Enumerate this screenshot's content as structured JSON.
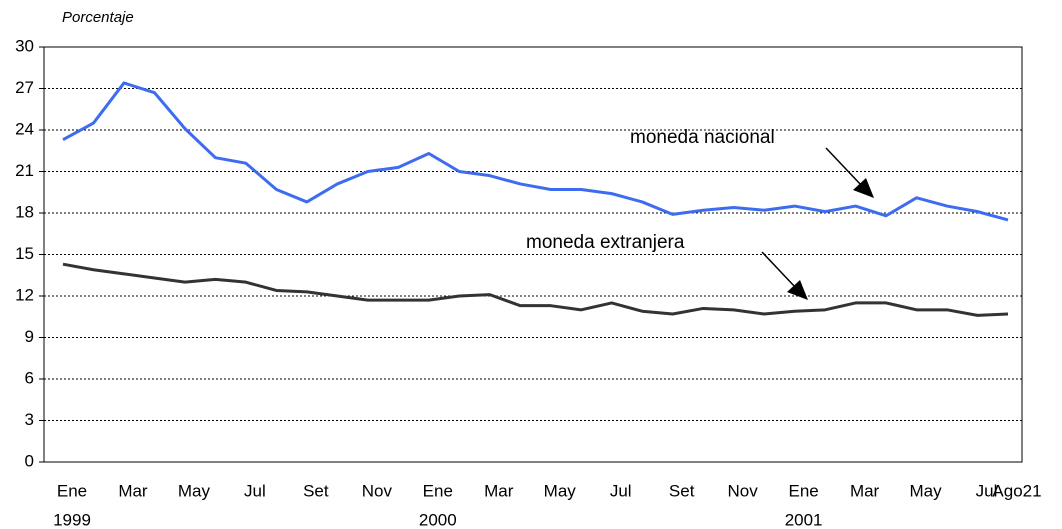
{
  "chart_data": {
    "type": "line",
    "y_label": "Porcentaje",
    "categories": [
      "Ene",
      null,
      "Mar",
      null,
      "May",
      null,
      "Jul",
      null,
      "Set",
      null,
      "Nov",
      null,
      "Ene",
      null,
      "Mar",
      null,
      "May",
      null,
      "Jul",
      null,
      "Set",
      null,
      "Nov",
      null,
      "Ene",
      null,
      "Mar",
      null,
      "May",
      null,
      "Jul",
      "Ago21"
    ],
    "years": [
      {
        "index": 0,
        "label": "1999"
      },
      {
        "index": 12,
        "label": "2000"
      },
      {
        "index": 24,
        "label": "2001"
      }
    ],
    "series": [
      {
        "name": "moneda nacional",
        "color": "#3d6cf0",
        "values": [
          23.3,
          24.5,
          27.4,
          26.7,
          24.1,
          22.0,
          21.6,
          19.7,
          18.8,
          20.1,
          21.0,
          21.3,
          22.3,
          21.0,
          20.7,
          20.1,
          19.7,
          19.7,
          19.4,
          18.8,
          17.9,
          18.2,
          18.4,
          18.2,
          18.5,
          18.1,
          18.5,
          17.8,
          19.1,
          18.5,
          18.1,
          17.5
        ]
      },
      {
        "name": "moneda extranjera",
        "color": "#333333",
        "values": [
          14.3,
          13.9,
          13.6,
          13.3,
          13.0,
          13.2,
          13.0,
          12.4,
          12.3,
          12.0,
          11.7,
          11.7,
          11.7,
          12.0,
          12.1,
          11.3,
          11.3,
          11.0,
          11.5,
          10.9,
          10.7,
          11.1,
          11.0,
          10.7,
          10.9,
          11.0,
          11.5,
          11.5,
          11.0,
          11.0,
          10.6,
          10.7
        ]
      }
    ],
    "ylim": [
      0,
      30
    ],
    "yticks": [
      0,
      3,
      6,
      9,
      12,
      15,
      18,
      21,
      24,
      27,
      30
    ],
    "grid": true
  }
}
